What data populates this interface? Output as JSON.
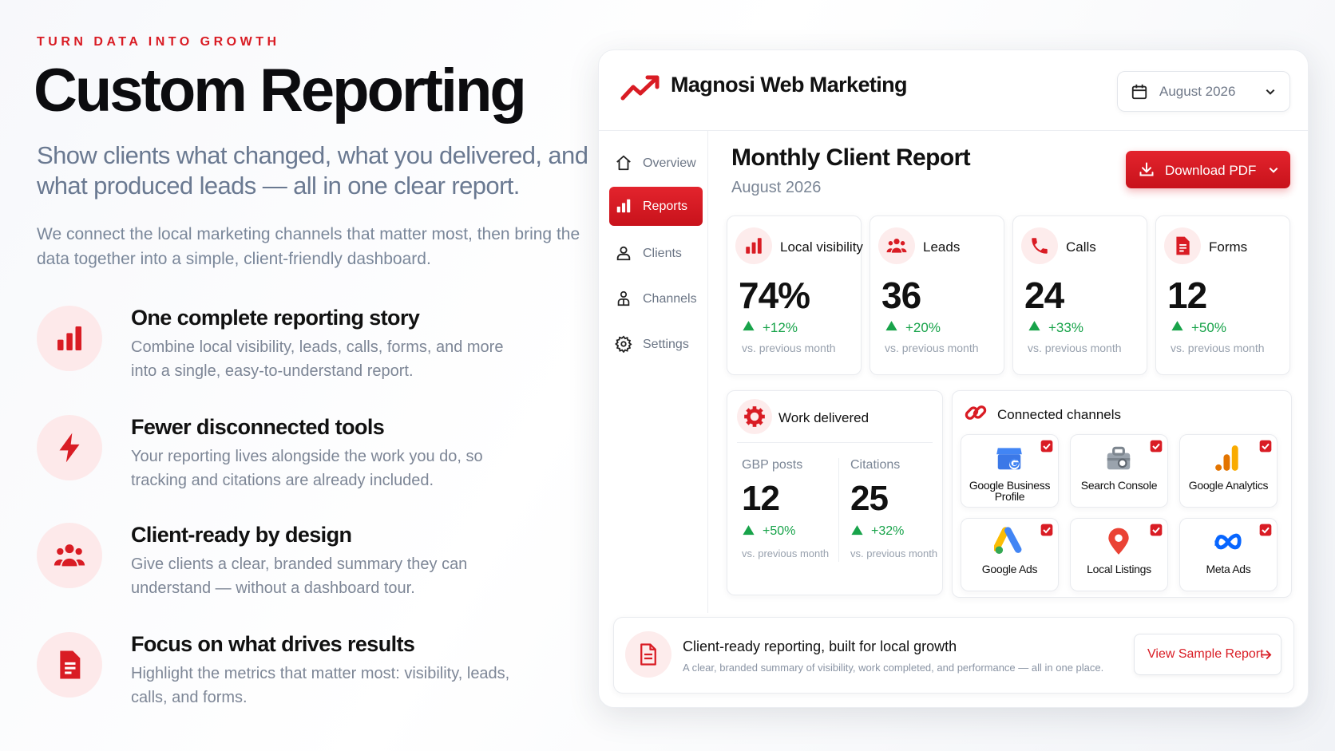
{
  "hero": {
    "eyebrow": "TURN DATA INTO GROWTH",
    "title": "Custom Reporting",
    "subtitle": "Show clients what changed, what you delivered, and what produced leads — all in one clear report.",
    "description": "We connect the local marketing channels that matter most, then bring the data together into a simple, client-friendly dashboard."
  },
  "features": [
    {
      "title": "One complete reporting story",
      "description": "Combine local visibility, leads, calls, forms, and more into a single, easy-to-understand report."
    },
    {
      "title": "Fewer disconnected tools",
      "description": "Your reporting lives alongside the work you do, so tracking and citations are already included."
    },
    {
      "title": "Client-ready by design",
      "description": "Give clients a clear, branded summary they can understand — without a dashboard tour."
    },
    {
      "title": "Focus on what drives results",
      "description": "Highlight the metrics that matter most: visibility, leads, calls, and forms."
    }
  ],
  "dashboard": {
    "brand": "Magnosi Web Marketing",
    "date_picker": "August 2026",
    "nav": [
      "Overview",
      "Reports",
      "Clients",
      "Channels",
      "Settings"
    ],
    "report": {
      "title": "Monthly Client Report",
      "period": "August 2026",
      "download_button": "Download PDF"
    },
    "metrics": [
      {
        "label": "Local visibility",
        "value": "74%",
        "change": "+12%",
        "comparison": "vs. previous month"
      },
      {
        "label": "Leads",
        "value": "36",
        "change": "+20%",
        "comparison": "vs. previous month"
      },
      {
        "label": "Calls",
        "value": "24",
        "change": "+33%",
        "comparison": "vs. previous month"
      },
      {
        "label": "Forms",
        "value": "12",
        "change": "+50%",
        "comparison": "vs. previous month"
      }
    ],
    "work_delivered": {
      "title": "Work delivered",
      "items": [
        {
          "label": "GBP posts",
          "value": "12",
          "change": "+50%",
          "comparison": "vs. previous month"
        },
        {
          "label": "Citations",
          "value": "25",
          "change": "+32%",
          "comparison": "vs. previous month"
        }
      ]
    },
    "connected_channels": {
      "title": "Connected channels",
      "channels": [
        "Google Business Profile",
        "Search Console",
        "Google Analytics",
        "Google Ads",
        "Local Listings",
        "Meta Ads"
      ]
    },
    "footer": {
      "title": "Client-ready reporting, built for local growth",
      "description": "A clear, branded summary of visibility, work completed, and performance — all in one place.",
      "button": "View Sample Report"
    }
  }
}
